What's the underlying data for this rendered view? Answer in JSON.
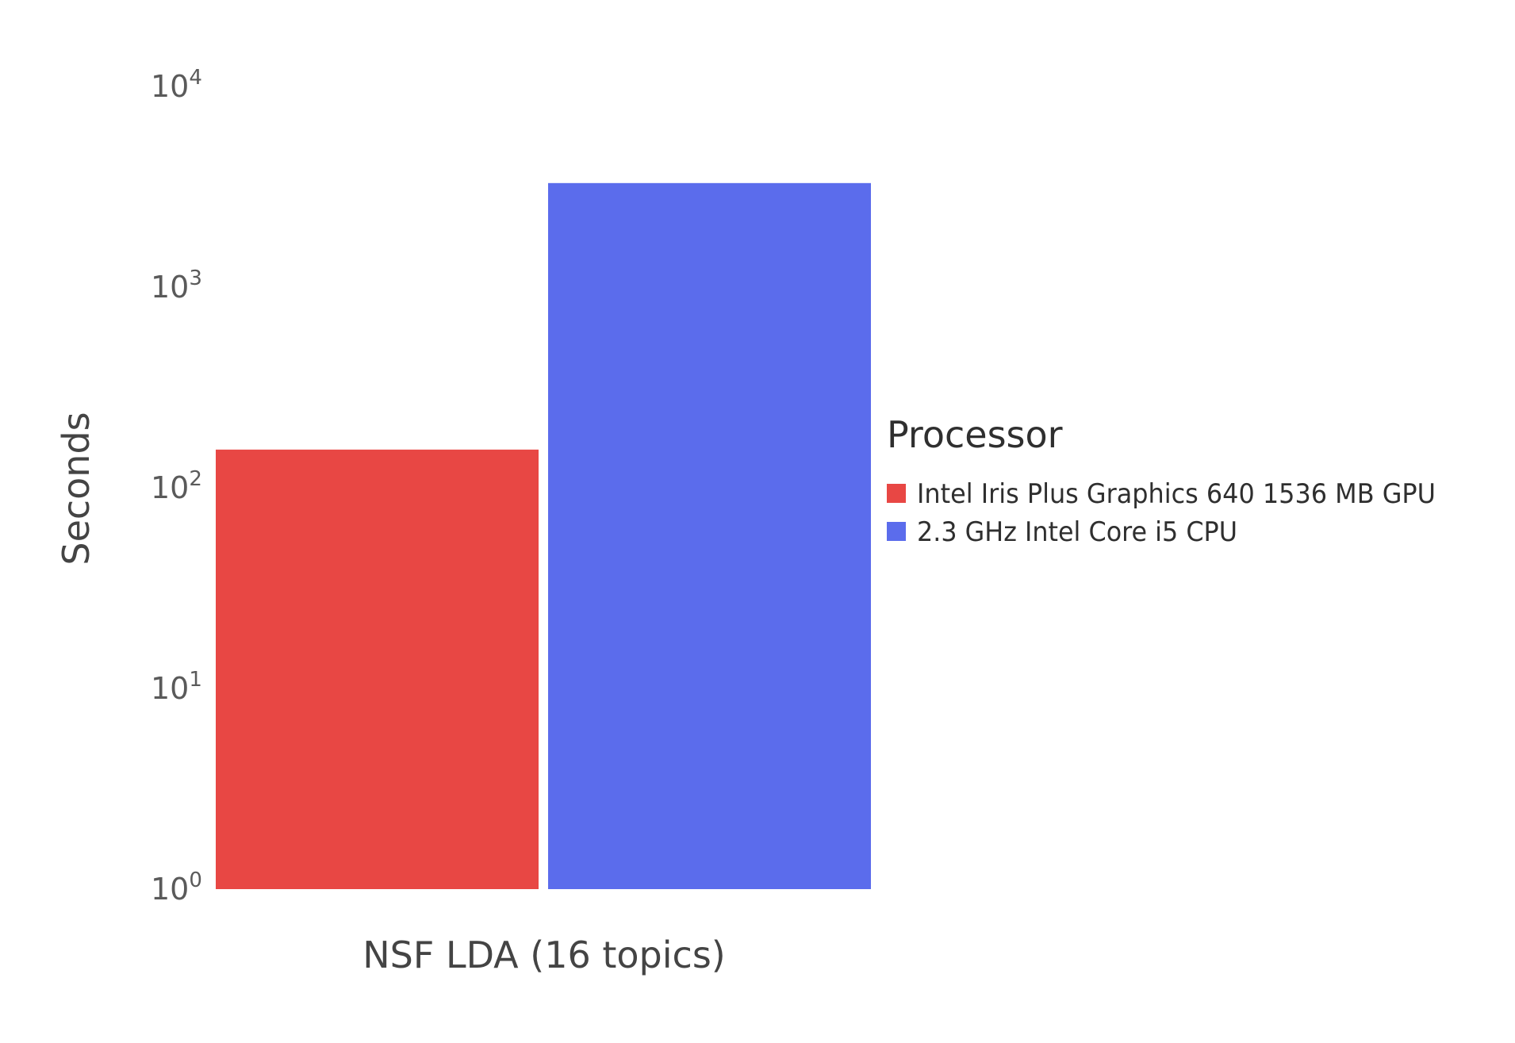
{
  "chart_data": {
    "type": "bar",
    "categories": [
      "NSF LDA (16 topics)"
    ],
    "series": [
      {
        "name": "Intel Iris Plus Graphics 640 1536 MB GPU",
        "values": [
          155
        ],
        "color": "#e84744"
      },
      {
        "name": "2.3 GHz Intel Core i5 CPU",
        "values": [
          3300
        ],
        "color": "#5b6cec"
      }
    ],
    "xlabel": "NSF LDA (16 topics)",
    "ylabel": "Seconds",
    "yscale": "log",
    "ylim": [
      1,
      10000
    ],
    "yticks": [
      {
        "base": "10",
        "exp": "0"
      },
      {
        "base": "10",
        "exp": "1"
      },
      {
        "base": "10",
        "exp": "2"
      },
      {
        "base": "10",
        "exp": "3"
      },
      {
        "base": "10",
        "exp": "4"
      }
    ],
    "legend": {
      "title": "Processor",
      "position": "right"
    },
    "grid": false
  }
}
